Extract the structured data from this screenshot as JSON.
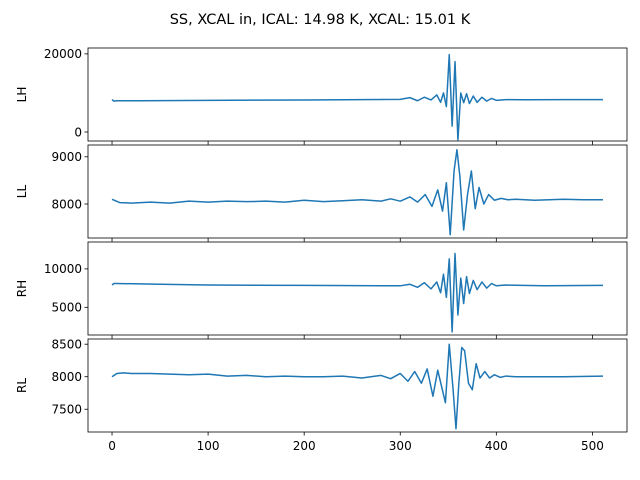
{
  "chart_data": {
    "type": "line",
    "title": "SS, XCAL in, ICAL: 14.98 K, XCAL: 15.01 K",
    "line_color": "#1f77b4",
    "x_range": [
      0,
      511
    ],
    "xlim": [
      -25,
      536
    ],
    "shared_xticks": [
      0,
      100,
      200,
      300,
      400,
      500
    ],
    "panels": [
      {
        "ylabel": "LH",
        "ylim": [
          -2300,
          21500
        ],
        "yticks": [
          0,
          20000
        ],
        "show_xtick_labels": false,
        "x": [
          0,
          2,
          5,
          30,
          100,
          200,
          300,
          310,
          318,
          325,
          332,
          338,
          342,
          345,
          348,
          351,
          354,
          357,
          360,
          363,
          366,
          369,
          372,
          376,
          380,
          385,
          390,
          395,
          400,
          410,
          430,
          470,
          511
        ],
        "y": [
          8300,
          7900,
          8000,
          8000,
          8100,
          8200,
          8350,
          8800,
          8000,
          8900,
          8200,
          9500,
          7600,
          10000,
          6500,
          19800,
          1500,
          18000,
          -2000,
          10000,
          7500,
          9800,
          7300,
          9200,
          7600,
          8900,
          7900,
          8600,
          8100,
          8300,
          8250,
          8300,
          8300
        ]
      },
      {
        "ylabel": "LL",
        "ylim": [
          7280,
          9250
        ],
        "yticks": [
          8000,
          9000
        ],
        "show_xtick_labels": false,
        "x": [
          0,
          8,
          20,
          40,
          60,
          80,
          100,
          120,
          140,
          160,
          180,
          200,
          220,
          240,
          260,
          280,
          290,
          300,
          310,
          318,
          326,
          333,
          339,
          344,
          348,
          352,
          356,
          359,
          362,
          366,
          370,
          374,
          378,
          382,
          387,
          392,
          398,
          405,
          412,
          420,
          440,
          470,
          490,
          511
        ],
        "y": [
          8100,
          8030,
          8020,
          8040,
          8020,
          8060,
          8040,
          8060,
          8050,
          8060,
          8040,
          8080,
          8050,
          8070,
          8090,
          8060,
          8110,
          8060,
          8150,
          8040,
          8200,
          7950,
          8300,
          7850,
          8450,
          7350,
          8700,
          9150,
          8600,
          7450,
          8200,
          8700,
          7900,
          8350,
          8000,
          8200,
          8080,
          8120,
          8090,
          8100,
          8080,
          8100,
          8090,
          8090
        ]
      },
      {
        "ylabel": "RH",
        "ylim": [
          1400,
          13500
        ],
        "yticks": [
          5000,
          10000
        ],
        "show_xtick_labels": false,
        "x": [
          0,
          2,
          5,
          50,
          100,
          200,
          300,
          310,
          318,
          325,
          332,
          338,
          342,
          345,
          348,
          351,
          354,
          357,
          360,
          363,
          366,
          369,
          372,
          376,
          380,
          385,
          390,
          395,
          400,
          410,
          450,
          511
        ],
        "y": [
          7900,
          8100,
          8100,
          8000,
          7900,
          7850,
          7800,
          8000,
          7600,
          8200,
          7400,
          8300,
          6900,
          9300,
          6300,
          11300,
          1800,
          12000,
          4000,
          8800,
          5500,
          9000,
          6800,
          8500,
          7300,
          8300,
          7500,
          8100,
          7800,
          7900,
          7800,
          7850
        ]
      },
      {
        "ylabel": "RL",
        "ylim": [
          7150,
          8580
        ],
        "yticks": [
          7500,
          8000,
          8500
        ],
        "show_xtick_labels": true,
        "x": [
          0,
          5,
          12,
          20,
          40,
          60,
          80,
          100,
          120,
          140,
          160,
          180,
          200,
          220,
          240,
          260,
          280,
          290,
          300,
          308,
          315,
          322,
          328,
          334,
          339,
          343,
          347,
          351,
          355,
          358,
          361,
          364,
          367,
          371,
          375,
          379,
          383,
          388,
          393,
          398,
          404,
          410,
          420,
          440,
          470,
          511
        ],
        "y": [
          8000,
          8050,
          8060,
          8050,
          8050,
          8040,
          8030,
          8040,
          8010,
          8020,
          8000,
          8010,
          8000,
          8000,
          8010,
          7980,
          8020,
          7970,
          8050,
          7930,
          8080,
          7900,
          8120,
          7700,
          8100,
          7850,
          7600,
          8500,
          7800,
          7200,
          7900,
          8450,
          8400,
          7900,
          7800,
          8200,
          7980,
          8080,
          7980,
          8030,
          7990,
          8010,
          8000,
          8000,
          8000,
          8010
        ]
      }
    ]
  }
}
